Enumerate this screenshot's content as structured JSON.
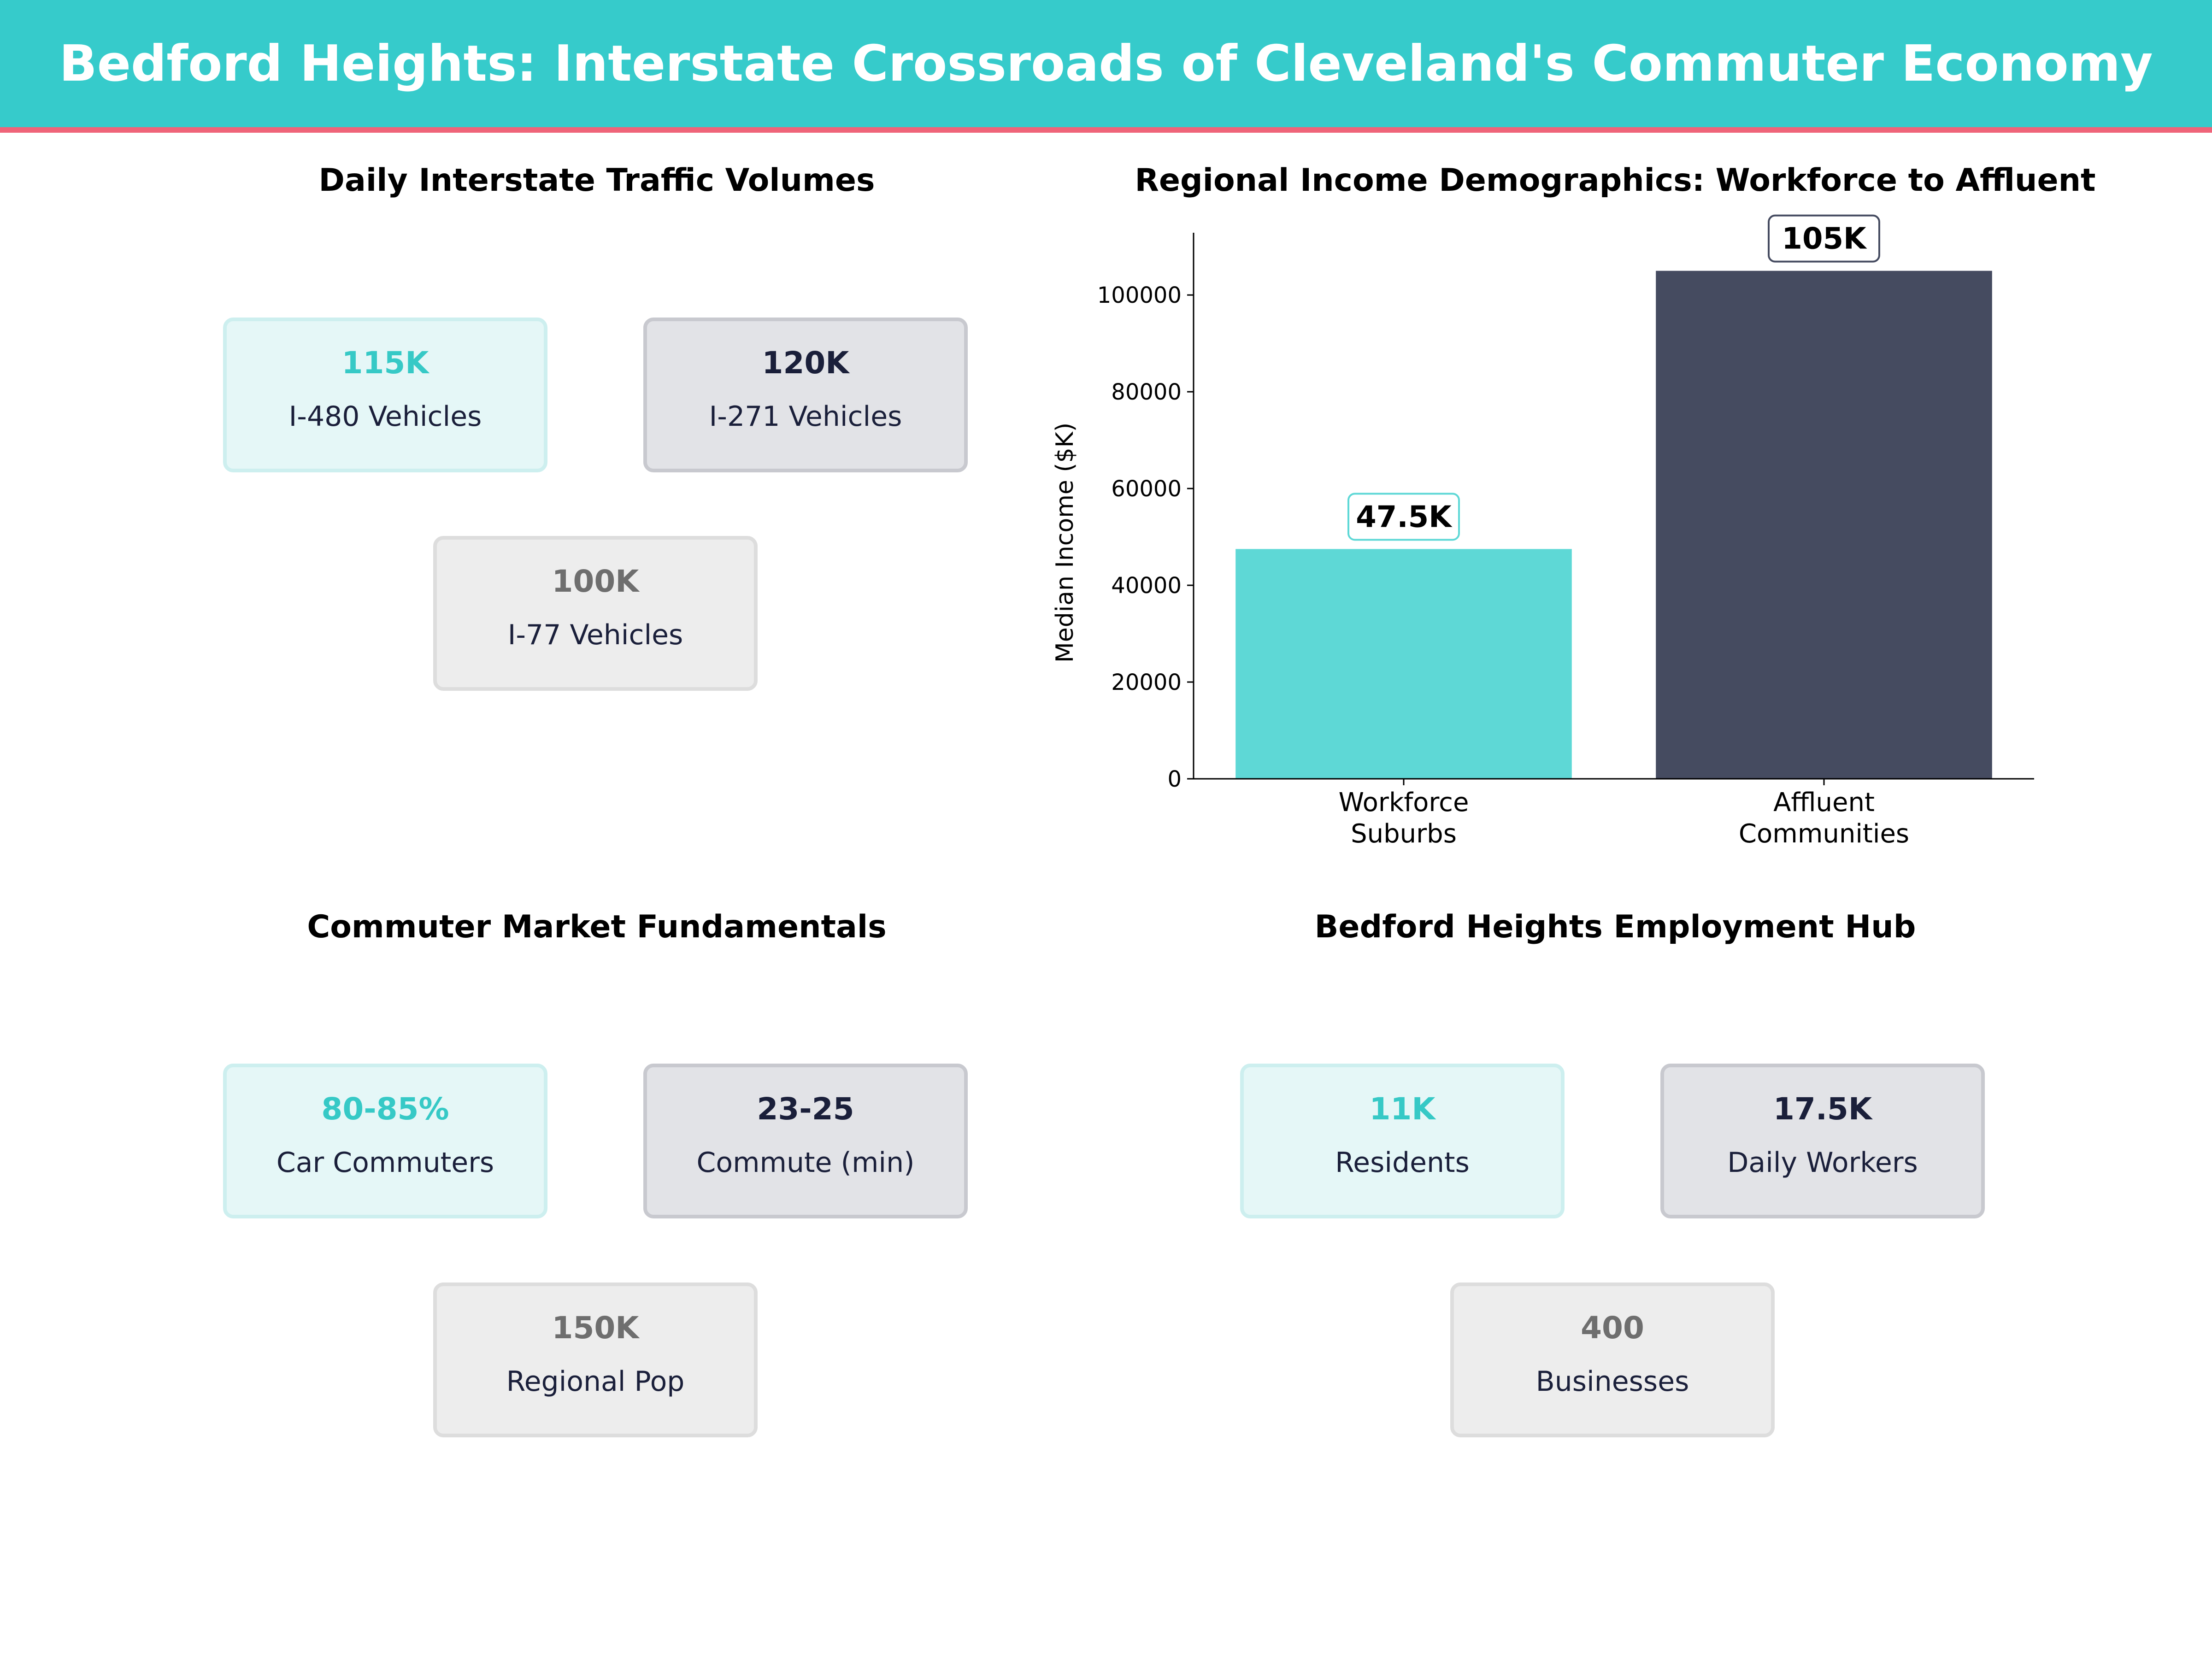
{
  "title": "Bedford Heights: Interstate Crossroads of Cleveland's Commuter Economy",
  "colors": {
    "header": "#36CBCB",
    "accent_line": "#EF6479",
    "teal": "#5ED8D6",
    "dark": "#454B60"
  },
  "panels": {
    "traffic": {
      "title": "Daily Interstate Traffic Volumes",
      "cards": [
        {
          "value": "115K",
          "label": "I-480  Vehicles"
        },
        {
          "value": "120K",
          "label": "I-271  Vehicles"
        },
        {
          "value": "100K",
          "label": "I-77  Vehicles"
        }
      ]
    },
    "commuter": {
      "title": "Commuter Market Fundamentals",
      "cards": [
        {
          "value": "80-85%",
          "label": "Car Commuters"
        },
        {
          "value": "23-25",
          "label": "Commute (min)"
        },
        {
          "value": "150K",
          "label": "Regional Pop"
        }
      ]
    },
    "employment": {
      "title": "Bedford Heights Employment Hub",
      "cards": [
        {
          "value": "11K",
          "label": "Residents"
        },
        {
          "value": "17.5K",
          "label": "Daily Workers"
        },
        {
          "value": "400",
          "label": "Businesses"
        }
      ]
    }
  },
  "chart_data": {
    "type": "bar",
    "title": "Regional Income Demographics: Workforce to Affluent",
    "categories": [
      "Workforce\nSuburbs",
      "Affluent\nCommunities"
    ],
    "category_lines": [
      [
        "Workforce",
        "Suburbs"
      ],
      [
        "Affluent",
        "Communities"
      ]
    ],
    "values": [
      47500,
      105000
    ],
    "data_labels": [
      "47.5K",
      "105K"
    ],
    "bar_colors": [
      "#5ED8D6",
      "#454B60"
    ],
    "xlabel": "",
    "ylabel": "Median Income ($K)",
    "ylim": [
      0,
      112875
    ],
    "yticks": [
      0,
      20000,
      40000,
      60000,
      80000,
      100000
    ],
    "grid": false
  }
}
